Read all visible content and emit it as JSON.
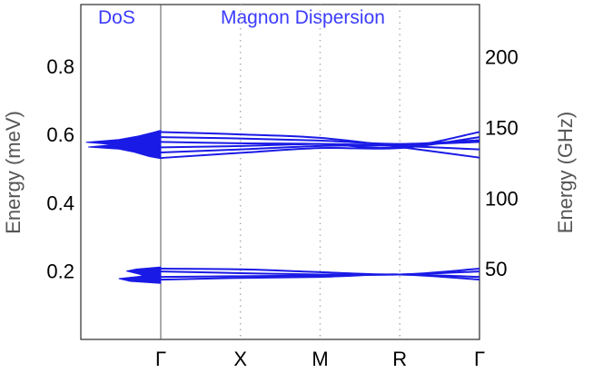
{
  "chart_data": {
    "type": "line",
    "panel_titles": {
      "dos": "DoS",
      "dispersion": "Magnon Dispersion"
    },
    "ylabel_left": "Energy (meV)",
    "ylabel_right": "Energy (GHz)",
    "ylim_left": [
      0.0,
      0.98
    ],
    "ylim_right_note": "GHz = meV × 241.8",
    "yticks_left": [
      "0.8",
      "0.6",
      "0.4",
      "0.2"
    ],
    "yticks_left_values": [
      0.8,
      0.6,
      0.4,
      0.2
    ],
    "yticks_right": [
      "200",
      "150",
      "100",
      "50"
    ],
    "yticks_right_values": [
      200,
      150,
      100,
      50
    ],
    "x_labels": [
      "Γ",
      "X",
      "M",
      "R",
      "Γ"
    ],
    "line_color": "#1a1ae6",
    "title_color": "#3b3bff",
    "series": [
      {
        "values": [
          0.607,
          0.6,
          0.59,
          0.563,
          0.532
        ]
      },
      {
        "values": [
          0.592,
          0.588,
          0.582,
          0.572,
          0.583
        ]
      },
      {
        "values": [
          0.578,
          0.574,
          0.572,
          0.562,
          0.607
        ]
      },
      {
        "values": [
          0.562,
          0.566,
          0.572,
          0.566,
          0.556
        ]
      },
      {
        "values": [
          0.547,
          0.556,
          0.566,
          0.569,
          0.578
        ]
      },
      {
        "values": [
          0.531,
          0.546,
          0.56,
          0.56,
          0.592
        ]
      },
      {
        "values": [
          0.207,
          0.205,
          0.197,
          0.19,
          0.207
        ]
      },
      {
        "values": [
          0.199,
          0.194,
          0.19,
          0.19,
          0.199
        ]
      },
      {
        "values": [
          0.183,
          0.185,
          0.187,
          0.19,
          0.183
        ]
      },
      {
        "values": [
          0.175,
          0.18,
          0.183,
          0.19,
          0.175
        ]
      }
    ],
    "dos_profile": [
      {
        "energy": 0.17,
        "weight": 0.4
      },
      {
        "energy": 0.178,
        "weight": 0.55
      },
      {
        "energy": 0.186,
        "weight": 0.22
      },
      {
        "energy": 0.192,
        "weight": 0.3
      },
      {
        "energy": 0.2,
        "weight": 0.45
      },
      {
        "energy": 0.206,
        "weight": 0.32
      },
      {
        "energy": 0.535,
        "weight": 0.15
      },
      {
        "energy": 0.548,
        "weight": 0.35
      },
      {
        "energy": 0.557,
        "weight": 0.55
      },
      {
        "energy": 0.563,
        "weight": 0.95
      },
      {
        "energy": 0.57,
        "weight": 0.62
      },
      {
        "energy": 0.577,
        "weight": 0.98
      },
      {
        "energy": 0.585,
        "weight": 0.55
      },
      {
        "energy": 0.595,
        "weight": 0.3
      },
      {
        "energy": 0.606,
        "weight": 0.1
      }
    ]
  }
}
